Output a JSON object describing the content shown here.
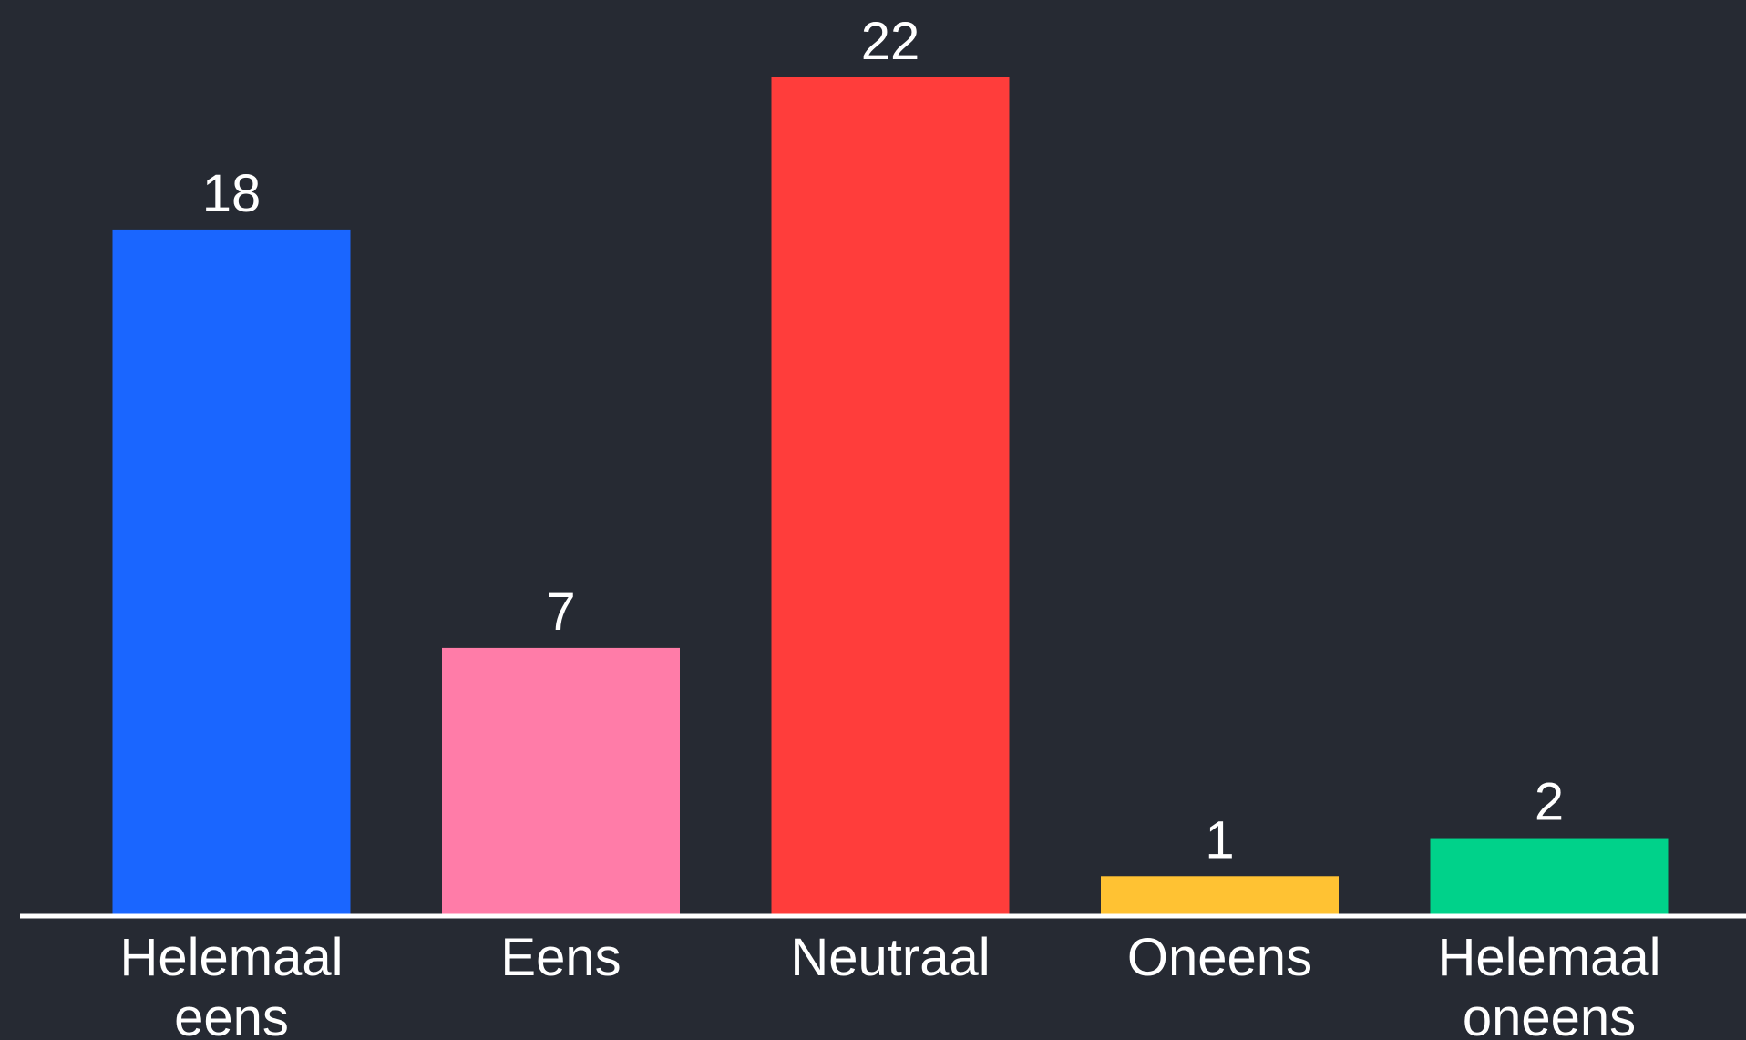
{
  "chart_data": {
    "type": "bar",
    "categories": [
      [
        "Helemaal",
        "eens"
      ],
      [
        "Eens"
      ],
      [
        "Neutraal"
      ],
      [
        "Oneens"
      ],
      [
        "Helemaal",
        "oneens"
      ]
    ],
    "values": [
      18,
      7,
      22,
      1,
      2
    ],
    "value_labels": [
      "18",
      "7",
      "22",
      "1",
      "2"
    ],
    "colors": [
      "#1a66ff",
      "#ff7ca8",
      "#ff3d3b",
      "#ffc233",
      "#00d28a"
    ],
    "background": "#262a33",
    "axis_color": "#ffffff",
    "text_color": "#ffffff",
    "grid": false,
    "legend": "none"
  }
}
